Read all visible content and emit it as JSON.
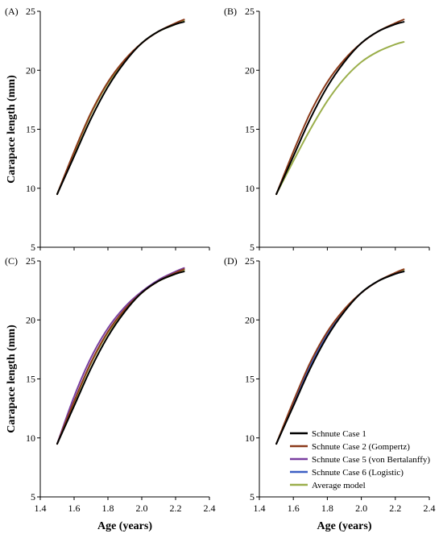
{
  "colors": {
    "Schnute Case 1": "#000000",
    "Schnute Case 2 (Gompertz)": "#8b3a1a",
    "Schnute Case 5 (von Bertalanffy)": "#7a3fa0",
    "Schnute Case 6 (Logistic)": "#3d5fc4",
    "Average model": "#9aae4a"
  },
  "chart_data": [
    {
      "type": "line",
      "panel_label": "(A)",
      "xlim": [
        1.4,
        2.4
      ],
      "ylim": [
        5,
        25
      ],
      "xticks": [],
      "yticks": [
        "5",
        "10",
        "15",
        "20",
        "25"
      ],
      "xlabel": "",
      "ylabel": "Carapace length (mm)",
      "series": [
        {
          "name": "Schnute Case 1",
          "x": [
            1.5,
            1.6,
            1.7,
            1.8,
            1.9,
            2.0,
            2.1,
            2.2,
            2.25
          ],
          "y": [
            9.5,
            12.7,
            15.9,
            18.6,
            20.7,
            22.3,
            23.3,
            23.9,
            24.1
          ]
        },
        {
          "name": "Schnute Case 2 (Gompertz)",
          "x": [
            1.5,
            1.6,
            1.7,
            1.8,
            1.9,
            2.0,
            2.1,
            2.2,
            2.25
          ],
          "y": [
            9.5,
            13.1,
            16.4,
            19.0,
            20.9,
            22.3,
            23.3,
            24.0,
            24.3
          ]
        },
        {
          "name": "Average model",
          "x": [
            1.5,
            1.6,
            1.7,
            1.8,
            1.9,
            2.0,
            2.1,
            2.2,
            2.25
          ],
          "y": [
            9.5,
            13.0,
            16.3,
            18.9,
            20.8,
            22.3,
            23.3,
            23.9,
            24.2
          ]
        }
      ]
    },
    {
      "type": "line",
      "panel_label": "(B)",
      "xlim": [
        1.4,
        2.4
      ],
      "ylim": [
        5,
        25
      ],
      "xticks": [],
      "yticks": [
        "5",
        "10",
        "15",
        "20",
        "25"
      ],
      "xlabel": "",
      "ylabel": "",
      "series": [
        {
          "name": "Schnute Case 1",
          "x": [
            1.5,
            1.6,
            1.7,
            1.8,
            1.9,
            2.0,
            2.1,
            2.2,
            2.25
          ],
          "y": [
            9.5,
            12.7,
            15.9,
            18.6,
            20.7,
            22.3,
            23.3,
            23.9,
            24.1
          ]
        },
        {
          "name": "Schnute Case 2 (Gompertz)",
          "x": [
            1.5,
            1.6,
            1.7,
            1.8,
            1.9,
            2.0,
            2.1,
            2.2,
            2.25
          ],
          "y": [
            9.5,
            13.1,
            16.4,
            19.0,
            20.9,
            22.3,
            23.3,
            24.0,
            24.3
          ]
        },
        {
          "name": "Average model",
          "x": [
            1.5,
            1.6,
            1.7,
            1.8,
            1.9,
            2.0,
            2.1,
            2.2,
            2.25
          ],
          "y": [
            9.5,
            12.3,
            15.0,
            17.4,
            19.3,
            20.7,
            21.6,
            22.2,
            22.4
          ]
        }
      ]
    },
    {
      "type": "line",
      "panel_label": "(C)",
      "xlim": [
        1.4,
        2.4
      ],
      "ylim": [
        5,
        25
      ],
      "xticks": [
        "1.4",
        "1.6",
        "1.8",
        "2.0",
        "2.2",
        "2.4"
      ],
      "yticks": [
        "5",
        "10",
        "15",
        "20",
        "25"
      ],
      "xlabel": "Age (years)",
      "ylabel": "Carapace length (mm)",
      "series": [
        {
          "name": "Schnute Case 1",
          "x": [
            1.5,
            1.6,
            1.7,
            1.8,
            1.9,
            2.0,
            2.1,
            2.2,
            2.25
          ],
          "y": [
            9.5,
            12.7,
            15.9,
            18.6,
            20.7,
            22.3,
            23.3,
            23.9,
            24.1
          ]
        },
        {
          "name": "Schnute Case 2 (Gompertz)",
          "x": [
            1.5,
            1.6,
            1.7,
            1.8,
            1.9,
            2.0,
            2.1,
            2.2,
            2.25
          ],
          "y": [
            9.5,
            13.1,
            16.4,
            19.0,
            20.9,
            22.3,
            23.3,
            24.0,
            24.3
          ]
        },
        {
          "name": "Schnute Case 5 (von Bertalanffy)",
          "x": [
            1.5,
            1.6,
            1.7,
            1.8,
            1.9,
            2.0,
            2.1,
            2.2,
            2.25
          ],
          "y": [
            9.5,
            13.5,
            16.8,
            19.3,
            21.1,
            22.4,
            23.4,
            24.1,
            24.4
          ]
        },
        {
          "name": "Average model",
          "x": [
            1.5,
            1.6,
            1.7,
            1.8,
            1.9,
            2.0,
            2.1,
            2.2,
            2.25
          ],
          "y": [
            9.5,
            13.0,
            16.3,
            18.9,
            20.8,
            22.3,
            23.3,
            23.9,
            24.2
          ]
        }
      ]
    },
    {
      "type": "line",
      "panel_label": "(D)",
      "xlim": [
        1.4,
        2.4
      ],
      "ylim": [
        5,
        25
      ],
      "xticks": [
        "1.4",
        "1.6",
        "1.8",
        "2.0",
        "2.2",
        "2.4"
      ],
      "yticks": [
        "5",
        "10",
        "15",
        "20",
        "25"
      ],
      "xlabel": "Age (years)",
      "ylabel": "",
      "legend": "lower-right",
      "series": [
        {
          "name": "Schnute Case 1",
          "x": [
            1.5,
            1.6,
            1.7,
            1.8,
            1.9,
            2.0,
            2.1,
            2.2,
            2.25
          ],
          "y": [
            9.5,
            12.7,
            15.9,
            18.6,
            20.7,
            22.3,
            23.3,
            23.9,
            24.1
          ]
        },
        {
          "name": "Schnute Case 2 (Gompertz)",
          "x": [
            1.5,
            1.6,
            1.7,
            1.8,
            1.9,
            2.0,
            2.1,
            2.2,
            2.25
          ],
          "y": [
            9.5,
            13.1,
            16.4,
            19.0,
            20.9,
            22.3,
            23.3,
            24.0,
            24.3
          ]
        },
        {
          "name": "Schnute Case 6 (Logistic)",
          "x": [
            1.5,
            1.6,
            1.7,
            1.8,
            1.9,
            2.0,
            2.1,
            2.2,
            2.25
          ],
          "y": [
            9.5,
            12.9,
            16.2,
            18.8,
            20.8,
            22.3,
            23.3,
            23.9,
            24.1
          ]
        },
        {
          "name": "Average model",
          "x": [
            1.5,
            1.6,
            1.7,
            1.8,
            1.9,
            2.0,
            2.1,
            2.2,
            2.25
          ],
          "y": [
            9.5,
            13.0,
            16.3,
            18.9,
            20.8,
            22.3,
            23.3,
            23.9,
            24.2
          ]
        }
      ]
    }
  ],
  "legend": {
    "entries": [
      "Schnute Case 1",
      "Schnute Case 2 (Gompertz)",
      "Schnute Case 5 (von Bertalanffy)",
      "Schnute Case 6 (Logistic)",
      "Average model"
    ]
  }
}
